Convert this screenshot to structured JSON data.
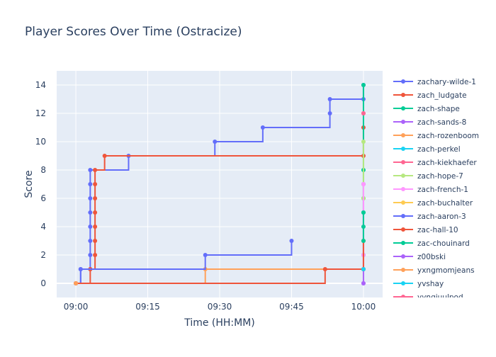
{
  "chart_data": {
    "type": "line",
    "line_shape": "step-after",
    "title": "Player Scores Over Time (Ostracize)",
    "xlabel": "Time (HH:MM)",
    "ylabel": "Score",
    "xlim": [
      "08:56",
      "10:04"
    ],
    "ylim": [
      -1,
      15
    ],
    "x_ticks": [
      "09:00",
      "09:15",
      "09:30",
      "09:45",
      "10:00"
    ],
    "y_ticks": [
      0,
      2,
      4,
      6,
      8,
      10,
      12,
      14
    ],
    "grid": true,
    "legend_position": "right",
    "series": [
      {
        "name": "zachary-wilde-1",
        "color": "#636efa",
        "points": [
          [
            "09:00",
            0
          ],
          [
            "09:01",
            1
          ],
          [
            "09:03",
            1
          ],
          [
            "09:03",
            2
          ],
          [
            "09:03",
            3
          ],
          [
            "09:03",
            4
          ],
          [
            "09:03",
            5
          ],
          [
            "09:03",
            6
          ],
          [
            "09:03",
            7
          ],
          [
            "09:03",
            8
          ],
          [
            "09:11",
            9
          ],
          [
            "09:29",
            10
          ],
          [
            "09:39",
            11
          ],
          [
            "09:53",
            12
          ],
          [
            "09:53",
            13
          ],
          [
            "10:00",
            13
          ],
          [
            "10:00",
            14
          ]
        ]
      },
      {
        "name": "zach_ludgate",
        "color": "#ef553b",
        "points": [
          [
            "09:00",
            0
          ],
          [
            "09:03",
            1
          ],
          [
            "09:04",
            2
          ],
          [
            "09:04",
            3
          ],
          [
            "09:04",
            4
          ],
          [
            "09:04",
            5
          ],
          [
            "09:04",
            6
          ],
          [
            "09:04",
            7
          ],
          [
            "09:04",
            8
          ],
          [
            "09:06",
            9
          ],
          [
            "10:00",
            9
          ],
          [
            "10:00",
            11
          ]
        ]
      },
      {
        "name": "zach-shape",
        "color": "#00cc96",
        "points": [
          [
            "10:00",
            2
          ],
          [
            "10:00",
            4
          ],
          [
            "10:00",
            5
          ],
          [
            "10:00",
            6
          ],
          [
            "10:00",
            8
          ],
          [
            "10:00",
            14
          ]
        ]
      },
      {
        "name": "zach-sands-8",
        "color": "#ab63fa",
        "points": [
          [
            "10:00",
            0
          ],
          [
            "10:00",
            7
          ]
        ]
      },
      {
        "name": "zach-rozenboom",
        "color": "#ffa15a",
        "points": [
          [
            "09:00",
            0
          ],
          [
            "09:27",
            1
          ],
          [
            "10:00",
            1
          ]
        ]
      },
      {
        "name": "zach-perkel",
        "color": "#19d3f3",
        "points": [
          [
            "10:00",
            1
          ]
        ]
      },
      {
        "name": "zach-kiekhaefer",
        "color": "#ff6692",
        "points": [
          [
            "10:00",
            12
          ]
        ]
      },
      {
        "name": "zach-hope-7",
        "color": "#b6e880",
        "points": [
          [
            "10:00",
            6
          ],
          [
            "10:00",
            10
          ]
        ]
      },
      {
        "name": "zach-french-1",
        "color": "#ff97ff",
        "points": [
          [
            "10:00",
            1
          ],
          [
            "10:00",
            2
          ],
          [
            "10:00",
            7
          ]
        ]
      },
      {
        "name": "zach-buchalter",
        "color": "#fecb52",
        "points": [
          [
            "10:00",
            1
          ]
        ]
      },
      {
        "name": "zach-aaron-3",
        "color": "#636efa",
        "points": [
          [
            "09:00",
            0
          ],
          [
            "09:01",
            1
          ],
          [
            "09:27",
            2
          ],
          [
            "09:45",
            3
          ]
        ]
      },
      {
        "name": "zac-hall-10",
        "color": "#ef553b",
        "points": [
          [
            "09:00",
            0
          ],
          [
            "09:52",
            1
          ],
          [
            "10:00",
            1
          ],
          [
            "10:00",
            3
          ]
        ]
      },
      {
        "name": "zac-chouinard",
        "color": "#00cc96",
        "points": [
          [
            "10:00",
            3
          ],
          [
            "10:00",
            5
          ]
        ]
      },
      {
        "name": "z00bski",
        "color": "#ab63fa",
        "points": [
          [
            "10:00",
            0
          ]
        ]
      },
      {
        "name": "yxngmomjeans",
        "color": "#ffa15a",
        "points": [
          [
            "09:00",
            0
          ]
        ]
      },
      {
        "name": "yvshay",
        "color": "#19d3f3",
        "points": [
          [
            "10:00",
            1
          ]
        ]
      },
      {
        "name": "yyngjuulpod",
        "color": "#ff6692",
        "points": [
          [
            "10:00",
            12
          ]
        ]
      }
    ]
  }
}
